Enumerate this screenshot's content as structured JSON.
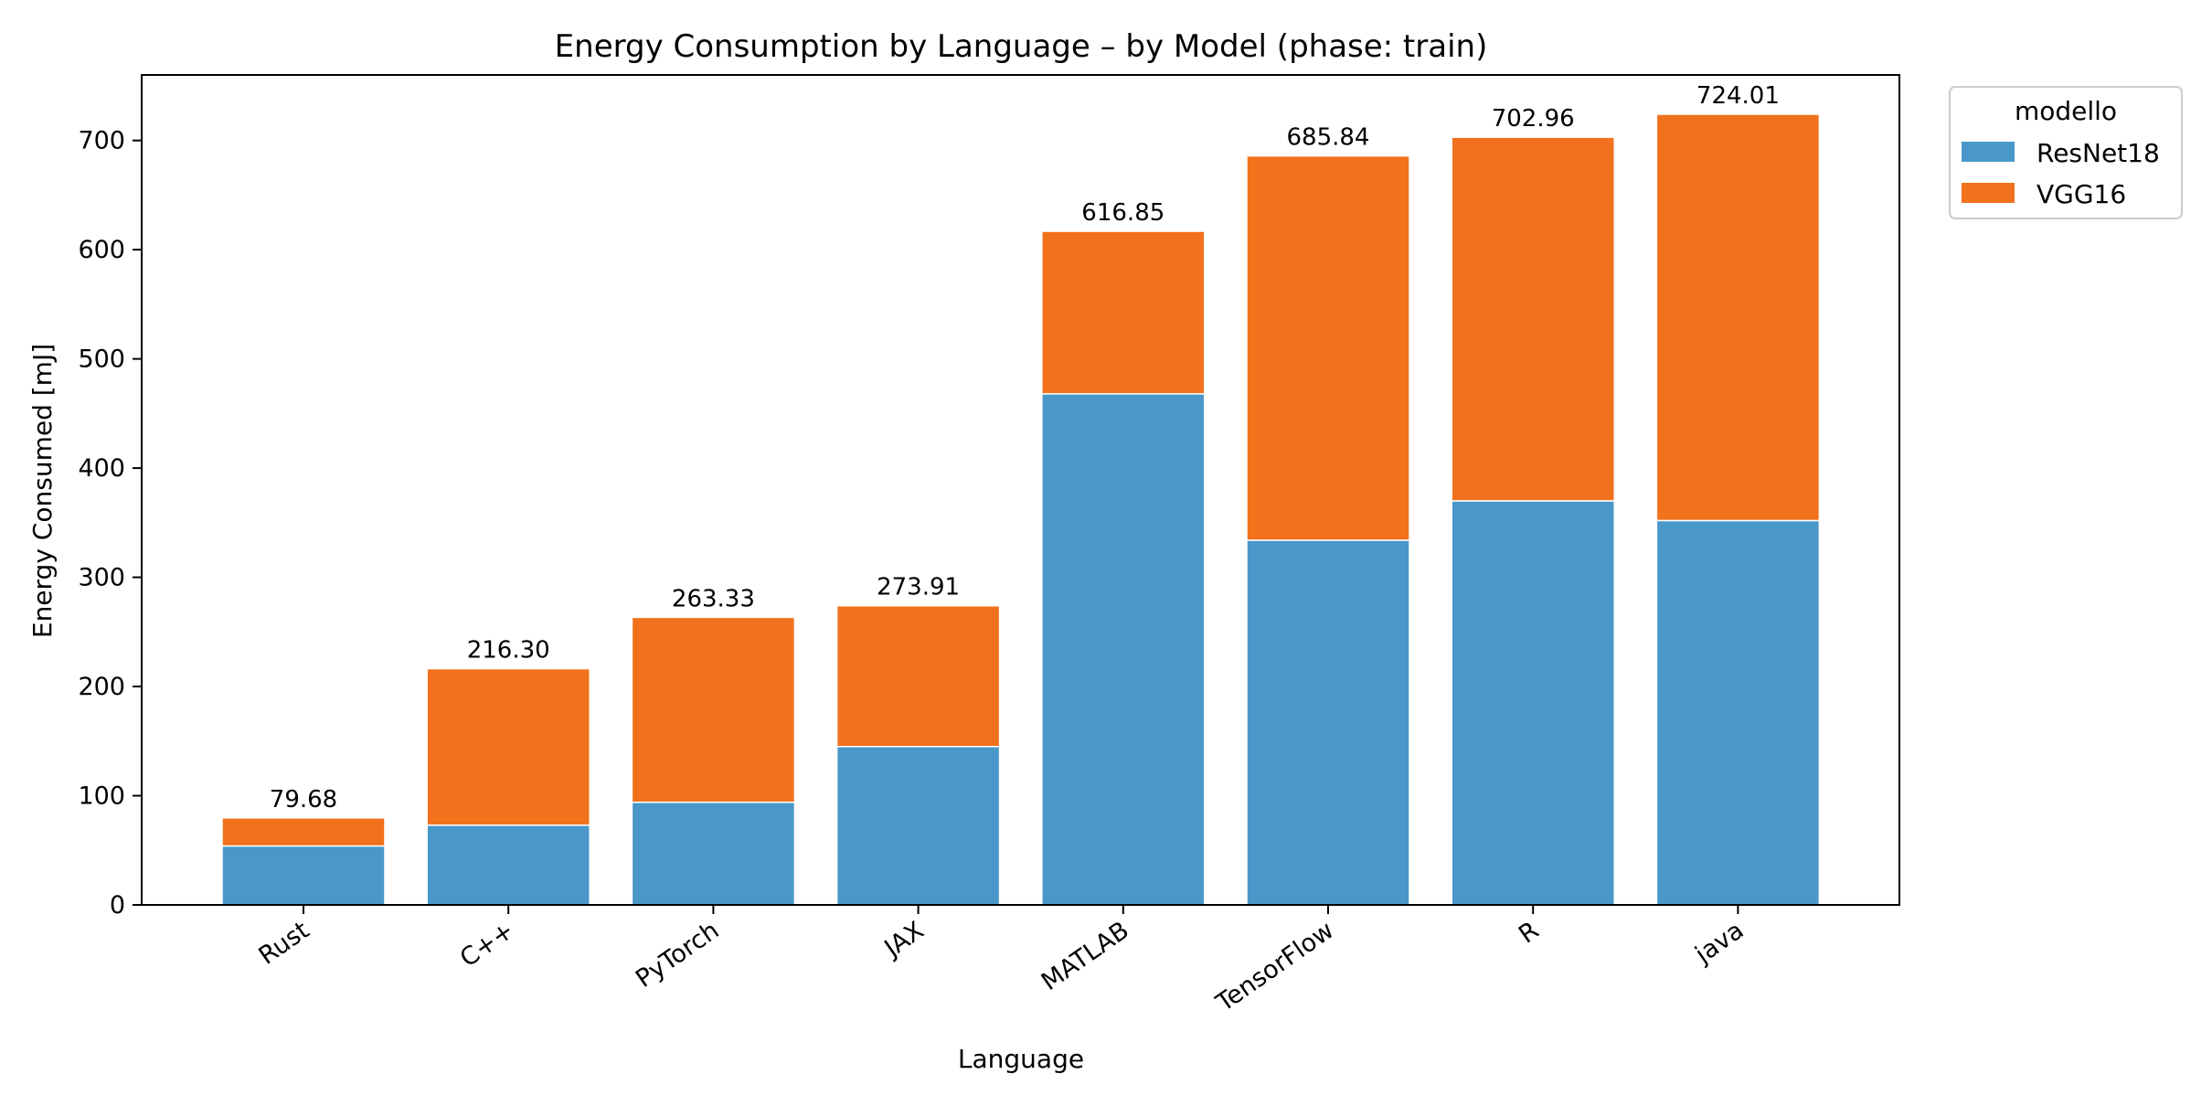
{
  "chart_data": {
    "type": "bar",
    "stacked": true,
    "title": "Energy Consumption by Language – by Model (phase: train)",
    "xlabel": "Language",
    "ylabel": "Energy Consumed [mJ]",
    "ylim": [
      0,
      760
    ],
    "yticks": [
      0,
      100,
      200,
      300,
      400,
      500,
      600,
      700
    ],
    "categories": [
      "Rust",
      "C++",
      "PyTorch",
      "JAX",
      "MATLAB",
      "TensorFlow",
      "R",
      "java"
    ],
    "series": [
      {
        "name": "ResNet18",
        "color": "#4a98c9",
        "values": [
          54.0,
          73.0,
          94.0,
          145.0,
          468.0,
          334.0,
          370.0,
          352.0
        ]
      },
      {
        "name": "VGG16",
        "color": "#f2711c",
        "values": [
          25.68,
          143.3,
          169.33,
          128.91,
          148.85,
          351.84,
          332.96,
          372.01
        ]
      }
    ],
    "totals_labels": [
      "79.68",
      "216.30",
      "263.33",
      "273.91",
      "616.85",
      "685.84",
      "702.96",
      "724.01"
    ],
    "legend": {
      "title": "modello",
      "placement": "outside-top-right"
    },
    "grid": false
  }
}
